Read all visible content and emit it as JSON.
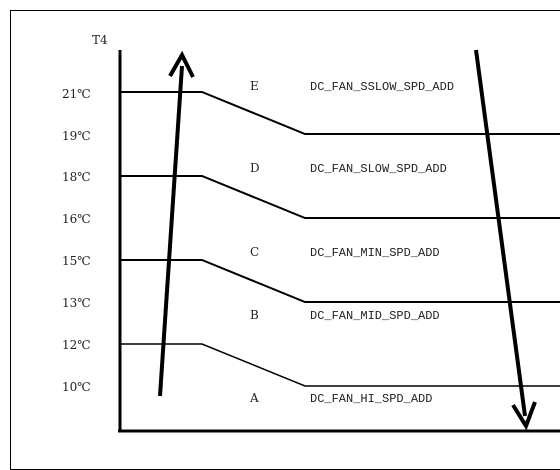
{
  "axis": {
    "label": "T4"
  },
  "ticks": [
    "21℃",
    "19℃",
    "18℃",
    "16℃",
    "15℃",
    "13℃",
    "12℃",
    "10℃"
  ],
  "zones": [
    {
      "letter": "E",
      "name": "DC_FAN_SSLOW_SPD_ADD"
    },
    {
      "letter": "D",
      "name": "DC_FAN_SLOW_SPD_ADD"
    },
    {
      "letter": "C",
      "name": "DC_FAN_MIN_SPD_ADD"
    },
    {
      "letter": "B",
      "name": "DC_FAN_MID_SPD_ADD"
    },
    {
      "letter": "A",
      "name": "DC_FAN_HI_SPD_ADD"
    }
  ],
  "arrows": {
    "rising": "up-arrow",
    "falling": "down-arrow"
  }
}
